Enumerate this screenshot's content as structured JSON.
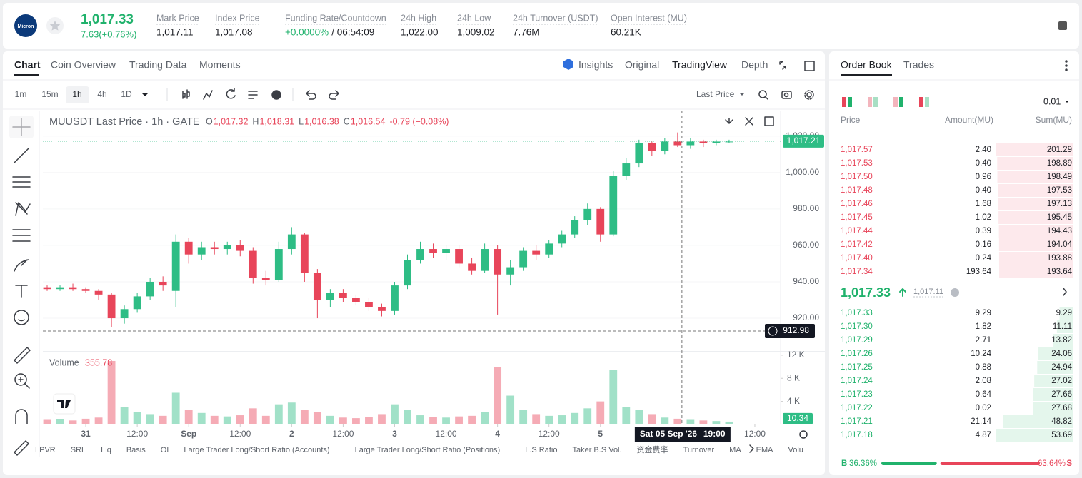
{
  "header": {
    "logo": "Micron",
    "price": "1,017.33",
    "change": "7.63(+0.76%)",
    "stats": [
      {
        "label": "Mark Price",
        "value": "1,017.11"
      },
      {
        "label": "Index Price",
        "value": "1,017.08"
      },
      {
        "label": "Funding Rate/Countdown",
        "value": "+0.0000%",
        "extra": "/ 06:54:09"
      },
      {
        "label": "24h High",
        "value": "1,022.00"
      },
      {
        "label": "24h Low",
        "value": "1,009.02"
      },
      {
        "label": "24h Turnover (USDT)",
        "value": "7.76M"
      },
      {
        "label": "Open Interest (MU)",
        "value": "60.21K"
      }
    ]
  },
  "chart_tabs": [
    "Chart",
    "Coin Overview",
    "Trading Data",
    "Moments"
  ],
  "view_tabs": [
    "Insights",
    "Original",
    "TradingView",
    "Depth"
  ],
  "intervals": [
    "1m",
    "15m",
    "1h",
    "4h",
    "1D"
  ],
  "price_type": "Last Price",
  "indicators": [
    "LPVR",
    "SRL",
    "Liq",
    "Basis",
    "OI",
    "Large Trader Long/Short Ratio (Accounts)",
    "Large Trader Long/Short Ratio (Positions)",
    "L.S Ratio",
    "Taker B.S Vol.",
    "资金费率",
    "Turnover",
    "MA",
    "EMA",
    "Volu"
  ],
  "chart_data": {
    "type": "candlestick",
    "title": "MUUSDT Last Price · 1h · GATE",
    "legend": [
      {
        "label": "O",
        "value": "1,017.32"
      },
      {
        "label": "H",
        "value": "1,018.31"
      },
      {
        "label": "L",
        "value": "1,016.38"
      },
      {
        "label": "C",
        "value": "1,016.54"
      }
    ],
    "legend_change": "-0.79 (−0.08%)",
    "up_color": "#2ebd85",
    "down_color": "#e8455a",
    "x": [
      -9,
      -6,
      -3,
      0,
      3,
      6,
      9,
      12,
      15,
      18,
      21,
      24,
      27,
      30,
      33,
      36,
      39,
      42,
      45,
      48,
      51,
      54,
      57,
      60,
      63,
      66,
      69,
      72,
      75,
      78,
      81,
      84,
      87,
      90,
      93,
      96,
      99,
      102,
      105,
      108,
      111,
      114,
      117,
      120,
      123,
      126,
      129,
      132,
      135,
      138,
      141,
      144,
      147,
      150
    ],
    "open": [
      937,
      936,
      937,
      936,
      935,
      933,
      920,
      925,
      932,
      940,
      935,
      962,
      955,
      959,
      958,
      960,
      957,
      942,
      941,
      958,
      966,
      945,
      930,
      934,
      931,
      929,
      926,
      924,
      938,
      952,
      958,
      956,
      958,
      950,
      946,
      958,
      944,
      948,
      957,
      955,
      961,
      966,
      974,
      980,
      966,
      998,
      1005,
      1016,
      1012,
      1017,
      1015,
      1017,
      1016,
      1017
    ],
    "high": [
      938,
      938,
      939,
      937,
      936,
      934,
      927,
      934,
      942,
      943,
      966,
      964,
      962,
      962,
      962,
      963,
      959,
      946,
      962,
      970,
      967,
      947,
      936,
      936,
      933,
      931,
      928,
      940,
      955,
      962,
      961,
      960,
      960,
      953,
      961,
      960,
      952,
      959,
      960,
      963,
      968,
      976,
      983,
      981,
      1001,
      1008,
      1018,
      1017,
      1019,
      1022,
      1019,
      1018,
      1018,
      1018
    ],
    "low": [
      935,
      935,
      935,
      934,
      930,
      915,
      917,
      923,
      930,
      935,
      926,
      950,
      952,
      955,
      955,
      954,
      939,
      938,
      940,
      955,
      940,
      920,
      926,
      929,
      927,
      924,
      921,
      922,
      936,
      950,
      953,
      952,
      948,
      944,
      945,
      922,
      938,
      946,
      952,
      953,
      959,
      964,
      971,
      962,
      965,
      996,
      1003,
      1009,
      1010,
      1014,
      1013,
      1014,
      1015,
      1016
    ],
    "close": [
      936,
      937,
      936,
      935,
      933,
      920,
      925,
      932,
      940,
      938,
      962,
      955,
      959,
      958,
      960,
      957,
      942,
      941,
      958,
      966,
      945,
      930,
      934,
      931,
      929,
      926,
      924,
      938,
      952,
      958,
      956,
      958,
      950,
      946,
      958,
      944,
      948,
      957,
      955,
      961,
      966,
      974,
      980,
      966,
      998,
      1005,
      1016,
      1012,
      1017,
      1015,
      1017,
      1016,
      1017,
      1017
    ],
    "volume": [
      800,
      900,
      700,
      1000,
      1200,
      11000,
      3000,
      2200,
      1800,
      1500,
      5500,
      2500,
      2000,
      1500,
      1400,
      1600,
      2800,
      1500,
      3500,
      3800,
      2500,
      2200,
      1500,
      1200,
      1100,
      1300,
      1800,
      3500,
      2500,
      1600,
      1300,
      1200,
      1400,
      1500,
      2200,
      10000,
      5000,
      2500,
      1800,
      1500,
      1600,
      2000,
      2800,
      4000,
      9500,
      3000,
      2500,
      1800,
      1200,
      1000,
      800,
      700,
      600,
      500
    ],
    "xlim": [
      -10,
      162
    ],
    "xticks": [
      {
        "value": 0,
        "label": "31"
      },
      {
        "value": 12,
        "label": "12:00"
      },
      {
        "value": 24,
        "label": "Sep"
      },
      {
        "value": 36,
        "label": "12:00"
      },
      {
        "value": 48,
        "label": "2"
      },
      {
        "value": 60,
        "label": "12:00"
      },
      {
        "value": 72,
        "label": "3"
      },
      {
        "value": 84,
        "label": "12:00"
      },
      {
        "value": 96,
        "label": "4"
      },
      {
        "value": 108,
        "label": "12:00"
      },
      {
        "value": 120,
        "label": "5"
      },
      {
        "value": 156,
        "label": "12:00"
      }
    ],
    "ylim": [
      902,
      1034
    ],
    "yticks": [
      {
        "value": 920,
        "label": "920.00"
      },
      {
        "value": 940,
        "label": "940.00"
      },
      {
        "value": 960,
        "label": "960.00"
      },
      {
        "value": 980,
        "label": "980.00"
      },
      {
        "value": 1000,
        "label": "1,000.00"
      },
      {
        "value": 1020,
        "label": "1,020.00"
      }
    ],
    "last_price": {
      "value": 1017.21,
      "label": "1,017.21"
    },
    "crosshair": {
      "x": 139,
      "date_label": "Sat 05 Sep '26",
      "time_label": "19:00",
      "y": 912.98
    },
    "volume_title": "Volume",
    "volume_value": "355.78",
    "volume_ylim": [
      0,
      12600
    ],
    "volume_yticks": [
      {
        "value": 4000,
        "label": "4 K"
      },
      {
        "value": 8000,
        "label": "8 K"
      },
      {
        "value": 12000,
        "label": "12 K"
      }
    ],
    "last_volume": 10.34
  },
  "order_book": {
    "tabs": [
      "Order Book",
      "Trades"
    ],
    "precision": "0.01",
    "columns": [
      "Price",
      "Amount(MU)",
      "Sum(MU)"
    ],
    "asks": [
      {
        "price": "1,017.57",
        "amount": "2.40",
        "sum": 201.29
      },
      {
        "price": "1,017.53",
        "amount": "0.40",
        "sum": 198.89
      },
      {
        "price": "1,017.50",
        "amount": "0.96",
        "sum": 198.49
      },
      {
        "price": "1,017.48",
        "amount": "0.40",
        "sum": 197.53
      },
      {
        "price": "1,017.46",
        "amount": "1.68",
        "sum": 197.13
      },
      {
        "price": "1,017.45",
        "amount": "1.02",
        "sum": 195.45
      },
      {
        "price": "1,017.44",
        "amount": "0.39",
        "sum": 194.43
      },
      {
        "price": "1,017.42",
        "amount": "0.16",
        "sum": 194.04
      },
      {
        "price": "1,017.40",
        "amount": "0.24",
        "sum": 193.88
      },
      {
        "price": "1,017.34",
        "amount": "193.64",
        "sum": 193.64
      }
    ],
    "last": "1,017.33",
    "mark": "1,017.11",
    "bids": [
      {
        "price": "1,017.33",
        "amount": "9.29",
        "sum": 9.29
      },
      {
        "price": "1,017.30",
        "amount": "1.82",
        "sum": 11.11
      },
      {
        "price": "1,017.29",
        "amount": "2.71",
        "sum": 13.82
      },
      {
        "price": "1,017.26",
        "amount": "10.24",
        "sum": 24.06
      },
      {
        "price": "1,017.25",
        "amount": "0.88",
        "sum": 24.94
      },
      {
        "price": "1,017.24",
        "amount": "2.08",
        "sum": 27.02
      },
      {
        "price": "1,017.23",
        "amount": "0.64",
        "sum": 27.66
      },
      {
        "price": "1,017.22",
        "amount": "0.02",
        "sum": 27.68
      },
      {
        "price": "1,017.21",
        "amount": "21.14",
        "sum": 48.82
      },
      {
        "price": "1,017.18",
        "amount": "4.87",
        "sum": 53.69
      }
    ],
    "buy_tag": "B",
    "buy": {
      "value": 36.36,
      "label": "36.36%"
    },
    "sell_tag": "S",
    "sell": {
      "value": 63.64,
      "label": "63.64%"
    }
  }
}
